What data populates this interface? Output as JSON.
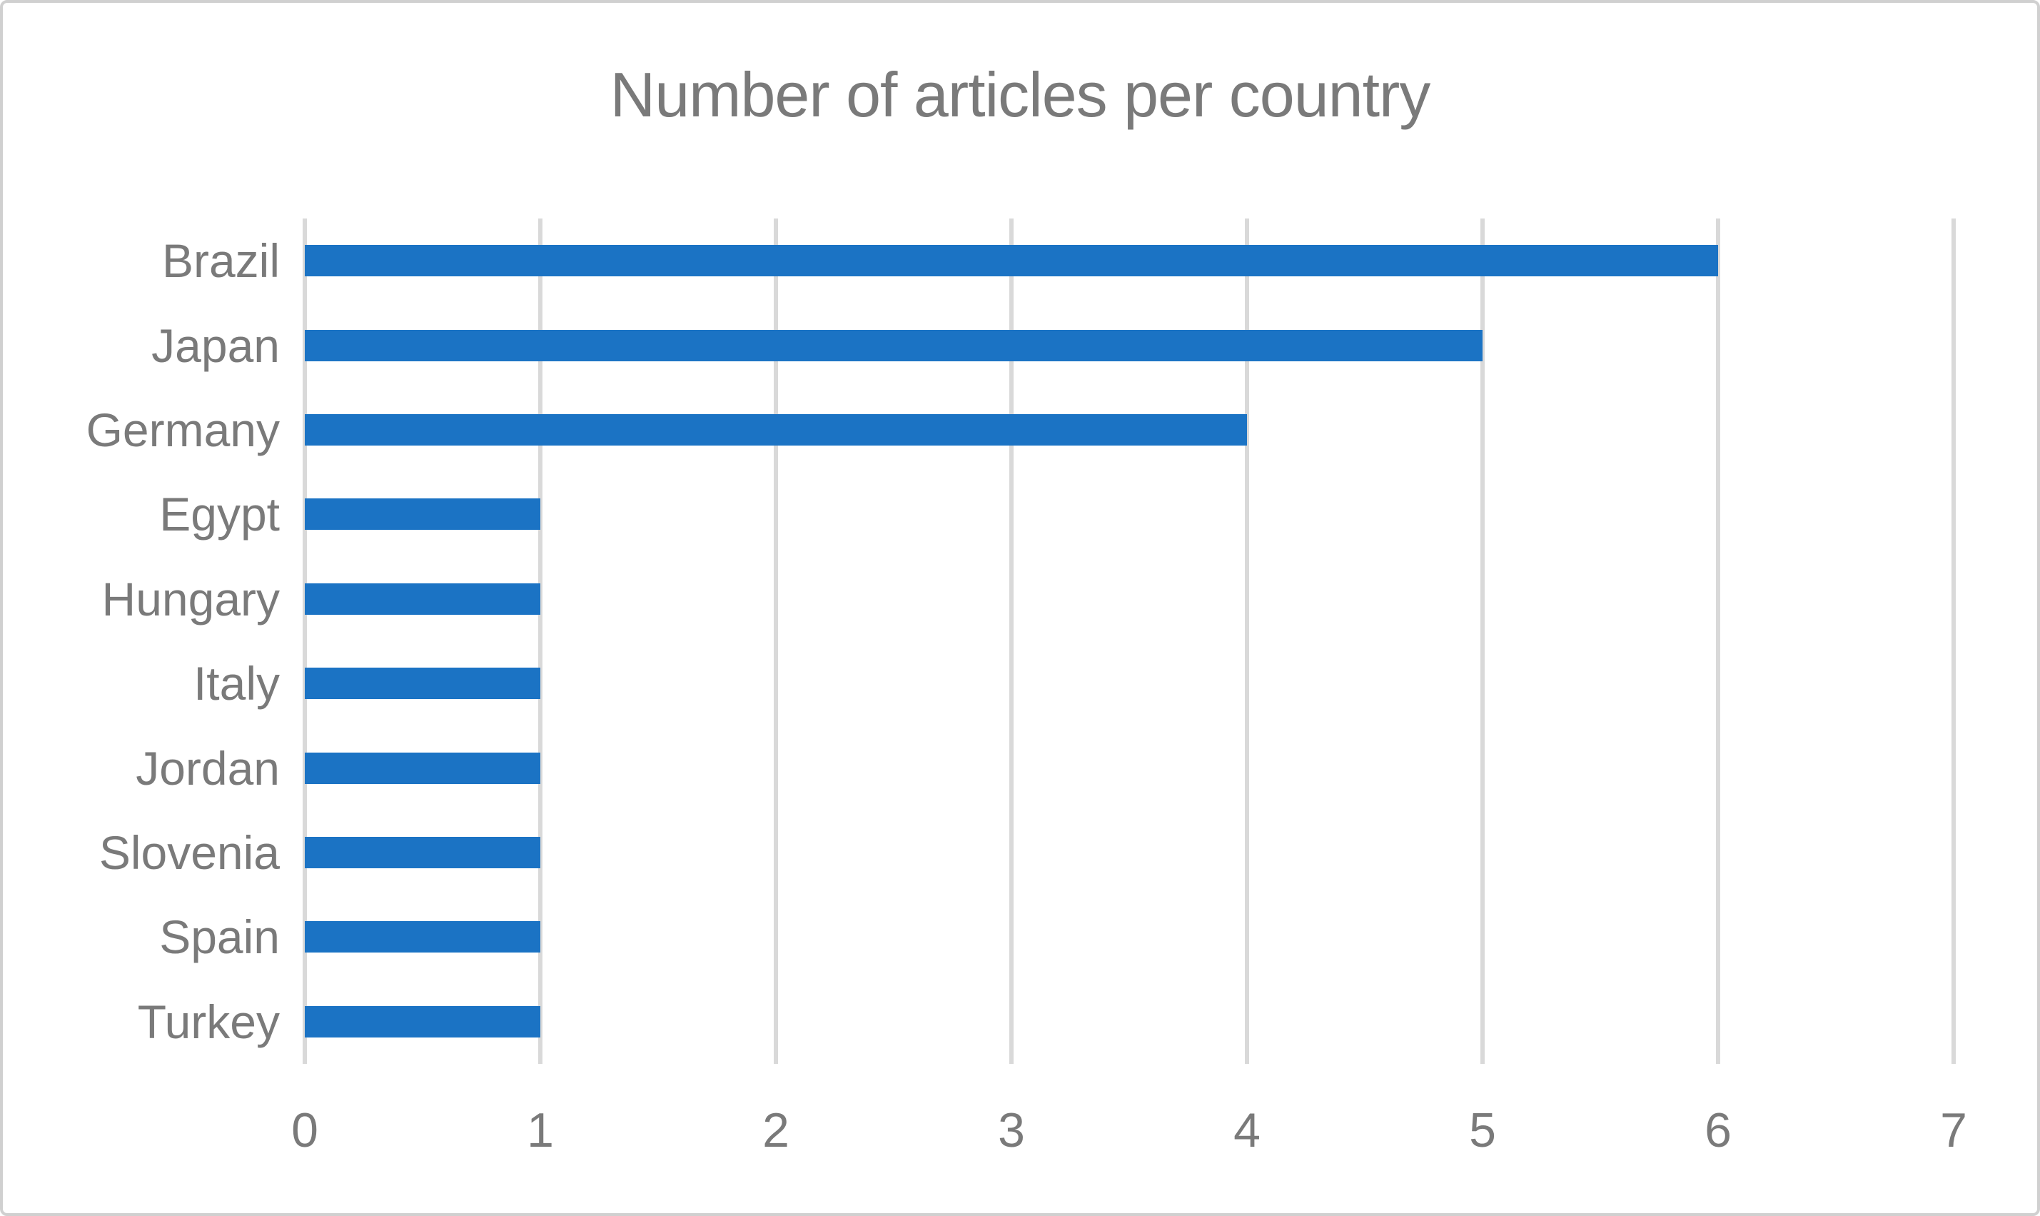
{
  "chart_data": {
    "type": "bar",
    "orientation": "horizontal",
    "title": "Number of articles per country",
    "categories": [
      "Brazil",
      "Japan",
      "Germany",
      "Egypt",
      "Hungary",
      "Italy",
      "Jordan",
      "Slovenia",
      "Spain",
      "Turkey"
    ],
    "values": [
      6,
      5,
      4,
      1,
      1,
      1,
      1,
      1,
      1,
      1
    ],
    "xlabel": "",
    "ylabel": "",
    "xlim": [
      0,
      7
    ],
    "x_ticks": [
      0,
      1,
      2,
      3,
      4,
      5,
      6,
      7
    ],
    "grid": "vertical-gridlines-only",
    "legend": "none",
    "colors": {
      "bar": "#1B73C4",
      "gridline": "#D9D9D9",
      "text": "#7A7A7A",
      "border": "#D0D0D0",
      "background": "#FFFFFF"
    }
  }
}
